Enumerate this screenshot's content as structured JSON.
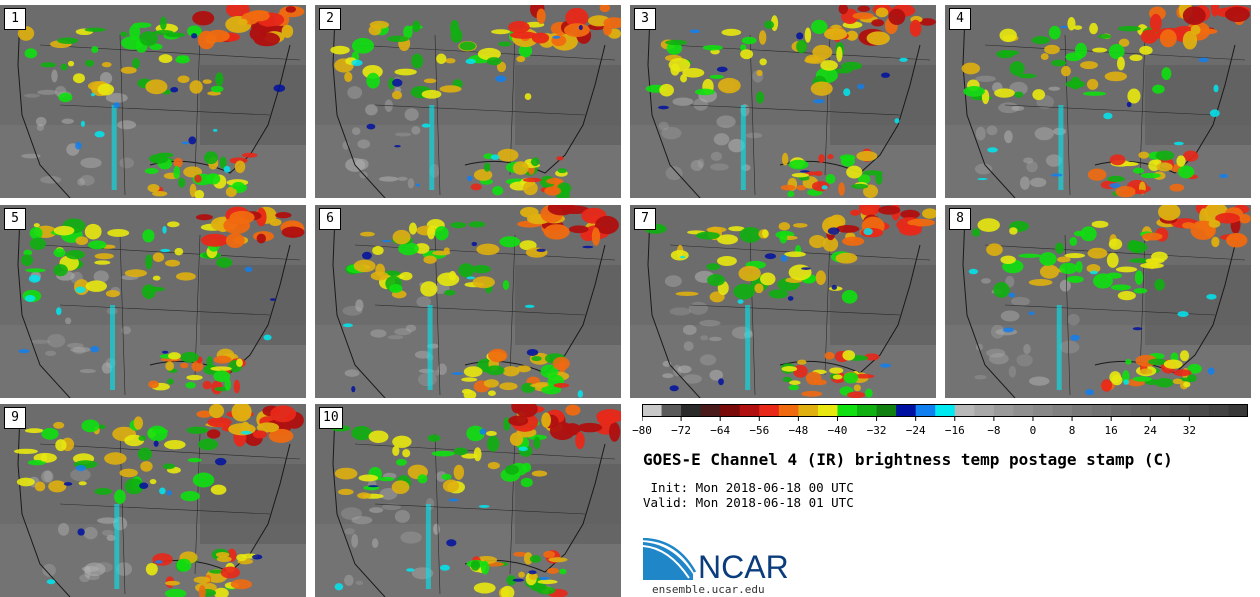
{
  "panels": [
    {
      "label": "1"
    },
    {
      "label": "2"
    },
    {
      "label": "3"
    },
    {
      "label": "4"
    },
    {
      "label": "5"
    },
    {
      "label": "6"
    },
    {
      "label": "7"
    },
    {
      "label": "8"
    },
    {
      "label": "9"
    },
    {
      "label": "10"
    }
  ],
  "colorbar": {
    "ticks": [
      "−80",
      "−72",
      "−64",
      "−56",
      "−48",
      "−40",
      "−32",
      "−24",
      "−16",
      "−8",
      "0",
      "8",
      "16",
      "24",
      "32"
    ],
    "colors": [
      "#c8c8c8",
      "#5a5a5a",
      "#2a2a2a",
      "#4a1a1a",
      "#7a0a0a",
      "#b01010",
      "#e82818",
      "#f06a10",
      "#e0b010",
      "#e8e810",
      "#10e010",
      "#10b010",
      "#108010",
      "#0010a0",
      "#1080f0",
      "#00e8f0",
      "#b8b8b8",
      "#a8a8a8",
      "#9a9a9a",
      "#909090",
      "#888888",
      "#808080",
      "#787878",
      "#727272",
      "#6a6a6a",
      "#626262",
      "#5a5a5a",
      "#525252",
      "#4a4a4a",
      "#424242",
      "#383838"
    ]
  },
  "title": "GOES-E Channel 4 (IR) brightness temp postage stamp (C)",
  "init": " Init: Mon 2018-06-18 00 UTC",
  "valid": "Valid: Mon 2018-06-18 01 UTC",
  "logo": {
    "text": "NCAR"
  },
  "site": "ensemble.ucar.edu"
}
